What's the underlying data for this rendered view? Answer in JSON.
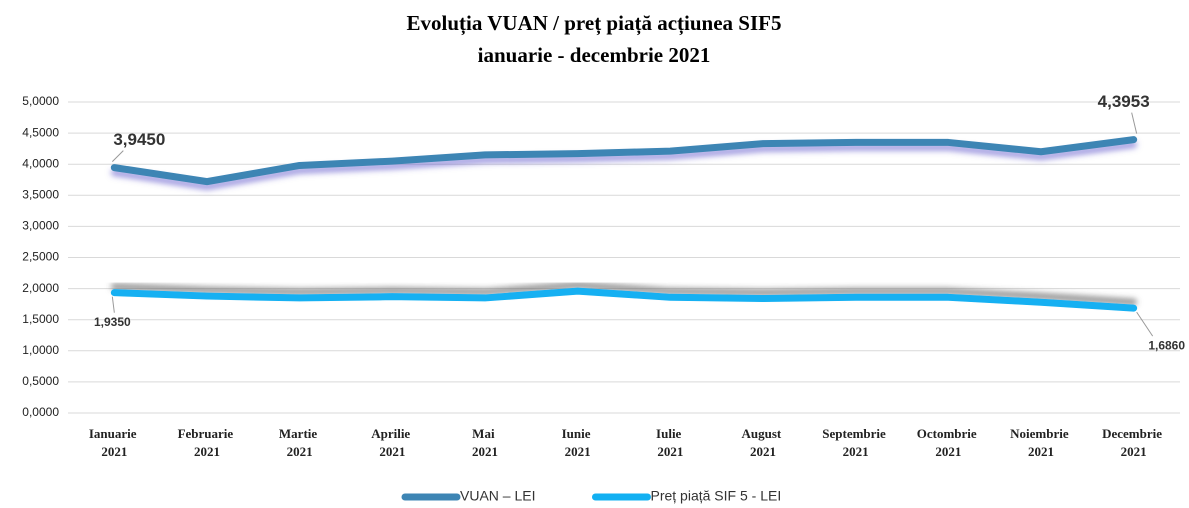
{
  "chart_data": {
    "type": "line",
    "title": "Evoluția VUAN / preț piață acțiunea SIF5",
    "subtitle": "ianuarie - decembrie 2021",
    "categories": [
      "Ianuarie 2021",
      "Februarie 2021",
      "Martie 2021",
      "Aprilie 2021",
      "Mai 2021",
      "Iunie 2021",
      "Iulie 2021",
      "August 2021",
      "Septembrie 2021",
      "Octombrie 2021",
      "Noiembrie 2021",
      "Decembrie 2021"
    ],
    "series": [
      {
        "name": "VUAN – LEI",
        "color": "#3d85b4",
        "values": [
          3.945,
          3.72,
          3.98,
          4.05,
          4.15,
          4.17,
          4.21,
          4.33,
          4.35,
          4.35,
          4.2,
          4.3953
        ],
        "value_labels": [
          "3,9450",
          null,
          null,
          null,
          null,
          null,
          null,
          null,
          null,
          null,
          null,
          "4,3953"
        ]
      },
      {
        "name": "Preț piață SIF 5 - LEI",
        "color": "#12b0f2",
        "values": [
          1.935,
          1.88,
          1.85,
          1.87,
          1.85,
          1.96,
          1.86,
          1.84,
          1.86,
          1.86,
          1.78,
          1.686
        ],
        "value_labels": [
          "1,9350",
          null,
          null,
          null,
          null,
          null,
          null,
          null,
          null,
          null,
          null,
          "1,6860"
        ]
      }
    ],
    "ylim": [
      0,
      5
    ],
    "yticks": [
      {
        "value": 0,
        "label": "0,0000"
      },
      {
        "value": 0.5,
        "label": "0,5000"
      },
      {
        "value": 1,
        "label": "1,0000"
      },
      {
        "value": 1.5,
        "label": "1,5000"
      },
      {
        "value": 2,
        "label": "2,0000"
      },
      {
        "value": 2.5,
        "label": "2,5000"
      },
      {
        "value": 3,
        "label": "3,0000"
      },
      {
        "value": 3.5,
        "label": "3,5000"
      },
      {
        "value": 4,
        "label": "4,0000"
      },
      {
        "value": 4.5,
        "label": "4,5000"
      },
      {
        "value": 5,
        "label": "5,0000"
      }
    ],
    "grid": true,
    "legend": "bottom"
  }
}
